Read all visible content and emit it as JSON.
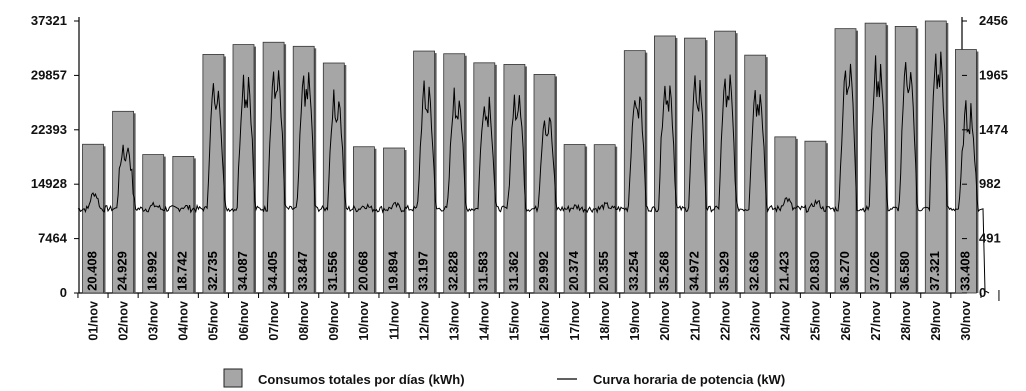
{
  "chart_data": {
    "type": "bar",
    "categories": [
      "01/nov",
      "02/nov",
      "03/nov",
      "04/nov",
      "05/nov",
      "06/nov",
      "07/nov",
      "08/nov",
      "09/nov",
      "10/nov",
      "11/nov",
      "12/nov",
      "13/nov",
      "14/nov",
      "15/nov",
      "16/nov",
      "17/nov",
      "18/nov",
      "19/nov",
      "20/nov",
      "21/nov",
      "22/nov",
      "23/nov",
      "24/nov",
      "25/nov",
      "26/nov",
      "27/nov",
      "28/nov",
      "29/nov",
      "30/nov"
    ],
    "series": [
      {
        "name": "Consumos totales por días (kWh)",
        "values": [
          20408,
          24929,
          18992,
          18742,
          32735,
          34087,
          34405,
          33847,
          31556,
          20068,
          19894,
          33197,
          32828,
          31583,
          31362,
          29992,
          20374,
          20355,
          33254,
          35268,
          34972,
          35929,
          32636,
          21423,
          20830,
          36270,
          37026,
          36580,
          37321,
          33408
        ],
        "labels": [
          "20.408",
          "24.929",
          "18.992",
          "18.742",
          "32.735",
          "34.087",
          "34.405",
          "33.847",
          "31.556",
          "20.068",
          "19.894",
          "33.197",
          "32.828",
          "31.583",
          "31.362",
          "29.992",
          "20.374",
          "20.355",
          "33.254",
          "35.268",
          "34.972",
          "35.929",
          "32.636",
          "21.423",
          "20.830",
          "36.270",
          "37.026",
          "36.580",
          "37.321",
          "33.408"
        ],
        "color": "#a6a6a6"
      },
      {
        "name": "Curva horaria de potencia (kW)",
        "type": "line",
        "color": "#000000",
        "peaks": [
          900,
          1390,
          790,
          780,
          1990,
          2080,
          2140,
          2100,
          1880,
          790,
          790,
          1970,
          1910,
          1860,
          1880,
          1700,
          780,
          790,
          1920,
          2030,
          2020,
          2050,
          1970,
          850,
          820,
          2200,
          2220,
          2200,
          2300,
          1770
        ]
      }
    ],
    "y_left_ticks": [
      "0",
      "7464",
      "14928",
      "22393",
      "29857",
      "37321"
    ],
    "y_right_ticks": [
      "0",
      "491",
      "982",
      "1474",
      "1965",
      "2456"
    ],
    "ylim_left": [
      0,
      37321
    ],
    "ylim_right": [
      0,
      2456
    ],
    "legend": [
      "Consumos totales por días (kWh)",
      "Curva horaria de potencia (kW)"
    ],
    "legend_position": "bottom"
  }
}
